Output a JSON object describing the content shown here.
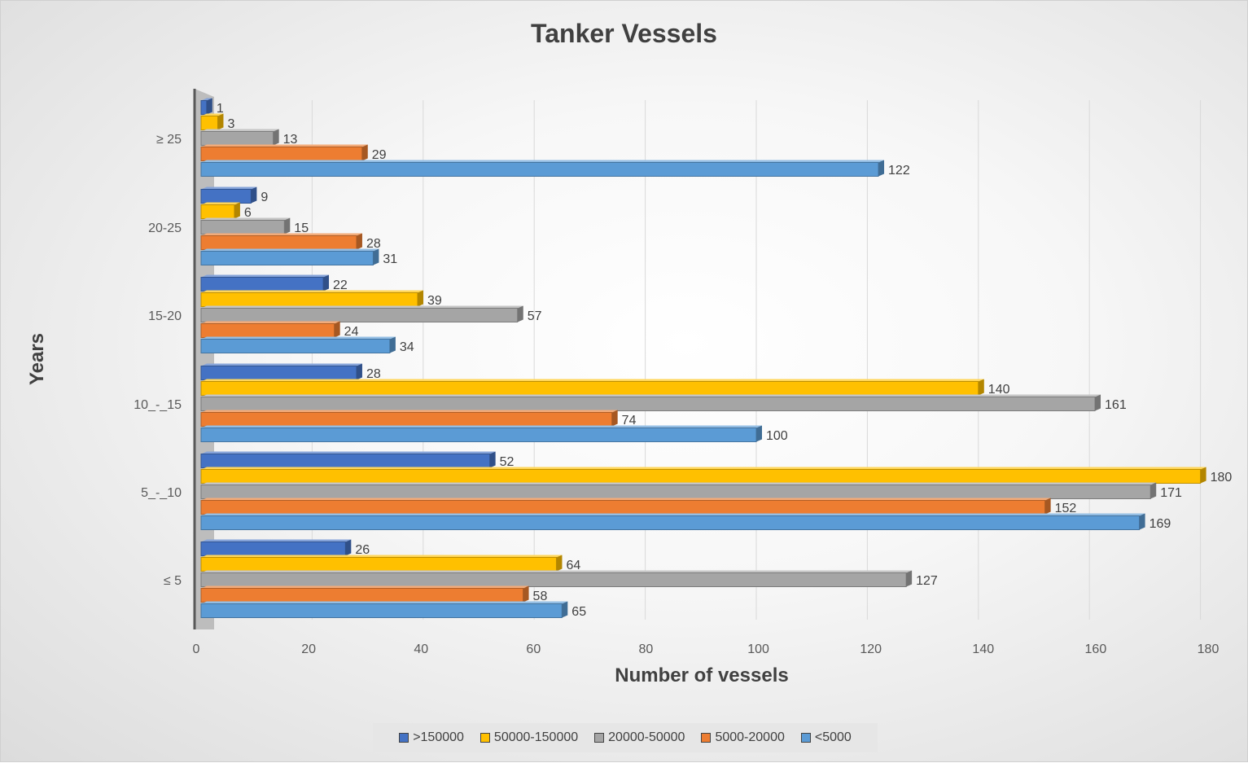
{
  "chart_data": {
    "type": "bar",
    "orientation": "horizontal",
    "title": "Tanker Vessels",
    "xlabel": "Number of vessels",
    "ylabel": "Years",
    "xlim": [
      0,
      180
    ],
    "x_ticks": [
      0,
      20,
      40,
      60,
      80,
      100,
      120,
      140,
      160,
      180
    ],
    "categories": [
      "≤ 5",
      "5_-_10",
      "10_-_15",
      "15-20",
      "20-25",
      "≥ 25"
    ],
    "series": [
      {
        "name": ">150000",
        "color": "#4472C4",
        "values": [
          26,
          52,
          28,
          22,
          9,
          1
        ]
      },
      {
        "name": "50000-150000",
        "color": "#FFC000",
        "values": [
          64,
          180,
          140,
          39,
          6,
          3
        ]
      },
      {
        "name": "20000-50000",
        "color": "#A5A5A5",
        "values": [
          127,
          171,
          161,
          57,
          15,
          13
        ]
      },
      {
        "name": "5000-20000",
        "color": "#ED7D31",
        "values": [
          58,
          152,
          74,
          24,
          28,
          29
        ]
      },
      {
        "name": "<5000",
        "color": "#5B9BD5",
        "values": [
          65,
          169,
          100,
          34,
          31,
          122
        ]
      }
    ],
    "grid": true,
    "legend_position": "bottom",
    "data_labels": true
  }
}
